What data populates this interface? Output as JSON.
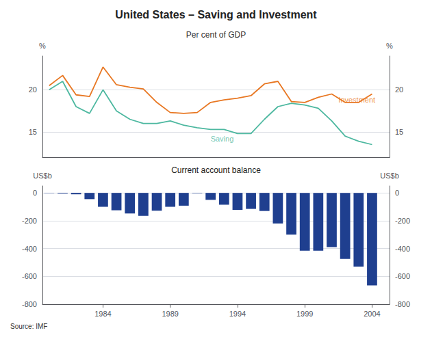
{
  "chart_data": [
    {
      "type": "line",
      "title": "United States – Saving and Investment",
      "subtitle": "Per cent of GDP",
      "x": [
        1980,
        1981,
        1982,
        1983,
        1984,
        1985,
        1986,
        1987,
        1988,
        1989,
        1990,
        1991,
        1992,
        1993,
        1994,
        1995,
        1996,
        1997,
        1998,
        1999,
        2000,
        2001,
        2002,
        2003,
        2004
      ],
      "series": [
        {
          "name": "Investment",
          "color": "#E87722",
          "values": [
            20.5,
            21.7,
            19.4,
            19.2,
            22.7,
            20.6,
            20.3,
            20.1,
            18.5,
            17.3,
            17.2,
            17.3,
            18.5,
            18.8,
            19.0,
            19.3,
            20.7,
            21.0,
            18.6,
            18.5,
            19.1,
            19.5,
            18.5,
            18.5,
            19.5
          ]
        },
        {
          "name": "Saving",
          "color": "#4DB8A0",
          "values": [
            20.0,
            21.0,
            18.0,
            17.2,
            20.0,
            17.5,
            16.5,
            16.0,
            16.0,
            16.3,
            15.8,
            15.5,
            15.3,
            15.3,
            14.8,
            14.8,
            16.5,
            18.0,
            18.4,
            18.2,
            17.8,
            16.3,
            14.5,
            13.9,
            13.5
          ]
        }
      ],
      "xlim": [
        1979.5,
        2005.3
      ],
      "ylim": [
        12,
        24
      ],
      "yticks": [
        15,
        20
      ],
      "y2lim": [
        12,
        24
      ],
      "y2ticks": [
        15,
        20
      ],
      "ylabel": "%",
      "y2label": "%",
      "annotations": [
        {
          "text": "Investment",
          "x": 2001.5,
          "y": 18.85,
          "color": "#E87722"
        },
        {
          "text": "Saving",
          "x": 1992.0,
          "y": 14.2,
          "color": "#4DB8A0"
        }
      ],
      "grid": true,
      "tick_labels": "y"
    },
    {
      "type": "bar",
      "title": "Current account balance",
      "x": [
        1980,
        1981,
        1982,
        1983,
        1984,
        1985,
        1986,
        1987,
        1988,
        1989,
        1990,
        1991,
        1992,
        1993,
        1994,
        1995,
        1996,
        1997,
        1998,
        1999,
        2000,
        2001,
        2002,
        2003,
        2004
      ],
      "values": [
        -2,
        -5,
        -10,
        -45,
        -100,
        -125,
        -148,
        -165,
        -128,
        -100,
        -92,
        -3,
        -50,
        -85,
        -122,
        -115,
        -130,
        -220,
        -300,
        -415,
        -415,
        -390,
        -475,
        -530,
        -665
      ],
      "color": "#1F3F8F",
      "xlim": [
        1979.5,
        2005.3
      ],
      "xticks": [
        1984,
        1989,
        1994,
        1999,
        2004
      ],
      "ylim": [
        -800,
        50
      ],
      "yticks": [
        0,
        -200,
        -400,
        -600,
        -800
      ],
      "y2lim": [
        -800,
        50
      ],
      "y2ticks": [
        0,
        -200,
        -400,
        -600,
        -800
      ],
      "ylabel": "US$b",
      "y2label": "US$b",
      "grid": true,
      "source": "Source: IMF"
    }
  ]
}
